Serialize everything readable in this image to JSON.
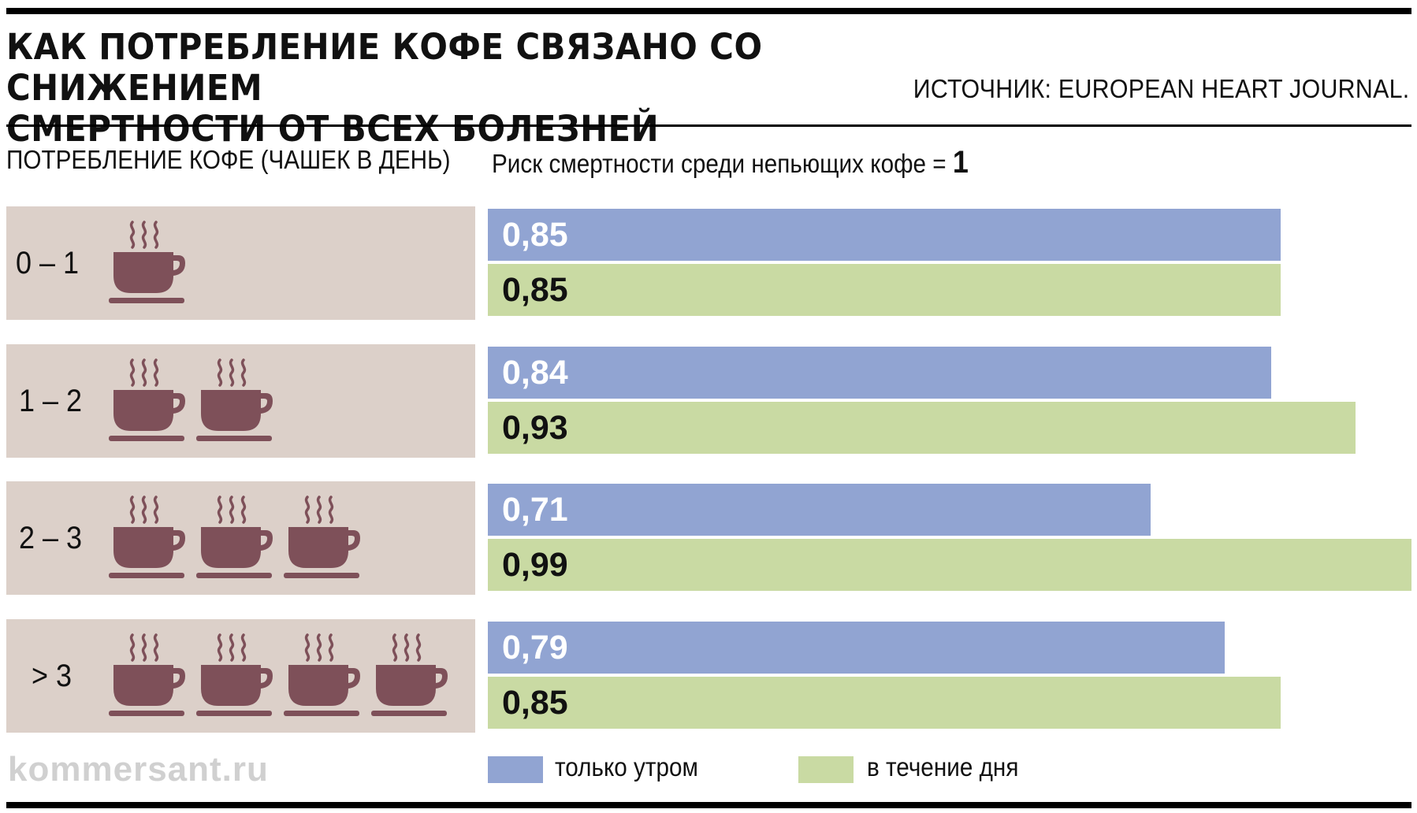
{
  "header": {
    "title_line1": "КАК ПОТРЕБЛЕНИЕ КОФЕ СВЯЗАНО СО СНИЖЕНИЕМ",
    "title_line2": "СМЕРТНОСТИ ОТ ВСЕХ БОЛЕЗНЕЙ",
    "source": "ИСТОЧНИК: EUROPEAN HEART JOURNAL."
  },
  "columns": {
    "left_header": "ПОТРЕБЛЕНИЕ КОФЕ (ЧАШЕК В ДЕНЬ)",
    "right_header": "Риск смертности среди непьющих кофе = ",
    "baseline_value": "1"
  },
  "chart_data": {
    "type": "bar",
    "orientation": "horizontal",
    "categories": [
      "0 – 1",
      "1 – 2",
      "2 – 3",
      "> 3"
    ],
    "cups_icons": [
      1,
      2,
      3,
      4
    ],
    "series": [
      {
        "name": "только утром",
        "color": "#91a4d2",
        "values": [
          0.85,
          0.84,
          0.71,
          0.79
        ],
        "labels": [
          "0,85",
          "0,84",
          "0,71",
          "0,79"
        ]
      },
      {
        "name": "в течение дня",
        "color": "#c9daa3",
        "values": [
          0.85,
          0.93,
          0.99,
          0.85
        ],
        "labels": [
          "0,85",
          "0,93",
          "0,99",
          "0,85"
        ]
      }
    ],
    "xlim": [
      0,
      0.99
    ],
    "grid": false,
    "legend_position": "bottom"
  },
  "colors": {
    "label_bg": "#dcd0c9",
    "cup": "#7e5059",
    "label_text_light": "#ffffff",
    "label_text_dark": "#111111"
  },
  "icon": "coffee-cup-steam-icon",
  "watermark": "kommersant.ru"
}
